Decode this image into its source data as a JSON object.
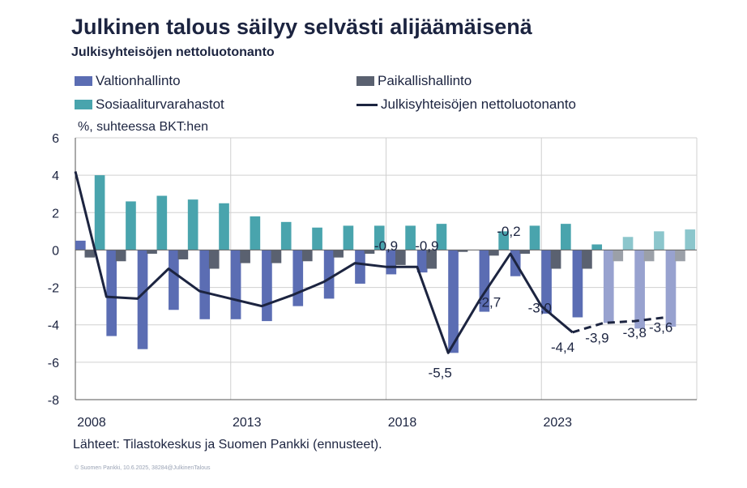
{
  "title": "Julkinen talous säilyy selvästi alijäämäisenä",
  "subtitle": "Julkisyhteisöjen nettoluotonanto",
  "unit_label": "%, suhteessa BKT:hen",
  "source": "Lähteet: Tilastokeskus ja Suomen Pankki (ennusteet).",
  "copyright": "© Suomen Pankki, 10.6.2025, 38284@JulkinenTalous",
  "legend": {
    "central": "Valtionhallinto",
    "local": "Paikallishallinto",
    "social": "Sosiaaliturvarahastot",
    "net": "Julkisyhteisöjen nettoluotonanto"
  },
  "colors": {
    "central": "#5b6db3",
    "central_forecast": "#98a2cf",
    "local": "#5a6170",
    "local_forecast": "#9ba0a8",
    "social": "#49a4ad",
    "social_forecast": "#8cc6cc",
    "net": "#1c2440",
    "grid": "#d0d0d0",
    "axis": "#555555"
  },
  "chart_data": {
    "type": "bar",
    "x": [
      2008,
      2009,
      2010,
      2011,
      2012,
      2013,
      2014,
      2015,
      2016,
      2017,
      2018,
      2019,
      2020,
      2021,
      2022,
      2023,
      2024,
      2025,
      2026,
      2027
    ],
    "x_tick_labels": [
      "2008",
      "2013",
      "2018",
      "2023"
    ],
    "ylim": [
      -8,
      6
    ],
    "yticks": [
      -8,
      -6,
      -4,
      -2,
      0,
      2,
      4,
      6
    ],
    "grid": true,
    "forecast_from": 2025,
    "series": [
      {
        "name": "Valtionhallinto",
        "type": "bar",
        "values": [
          0.5,
          -4.6,
          -5.3,
          -3.2,
          -3.7,
          -3.7,
          -3.8,
          -3.0,
          -2.6,
          -1.8,
          -1.3,
          -1.2,
          -5.5,
          -3.3,
          -1.4,
          -3.4,
          -3.6,
          -3.9,
          -4.2,
          -4.1
        ]
      },
      {
        "name": "Paikallishallinto",
        "type": "bar",
        "values": [
          -0.4,
          -0.6,
          -0.2,
          -0.5,
          -1.0,
          -0.7,
          -0.7,
          -0.6,
          -0.4,
          -0.2,
          -0.8,
          -1.0,
          -0.1,
          -0.3,
          -0.2,
          -1.0,
          -1.0,
          -0.6,
          -0.6,
          -0.6
        ]
      },
      {
        "name": "Sosiaaliturvarahastot",
        "type": "bar",
        "values": [
          4.0,
          2.6,
          2.9,
          2.7,
          2.5,
          1.8,
          1.5,
          1.2,
          1.3,
          1.3,
          1.3,
          1.4,
          0.0,
          1.0,
          1.3,
          1.4,
          0.3,
          0.7,
          1.0,
          1.1
        ]
      },
      {
        "name": "Julkisyhteisöjen nettoluotonanto",
        "type": "line",
        "values": [
          4.2,
          -2.5,
          -2.6,
          -1.0,
          -2.2,
          -2.6,
          -3.0,
          -2.4,
          -1.7,
          -0.7,
          -0.9,
          -0.9,
          -5.5,
          -2.7,
          -0.2,
          -3.0,
          -4.4,
          -3.9,
          -3.8,
          -3.6
        ]
      }
    ],
    "data_labels": [
      {
        "text": "-0,9",
        "year": 2018,
        "value": -0.9
      },
      {
        "text": "-0,9",
        "year": 2019,
        "value": -0.9
      },
      {
        "text": "-5,5",
        "year": 2020,
        "value": -5.5
      },
      {
        "text": "-2,7",
        "year": 2021,
        "value": -2.7
      },
      {
        "text": "-0,2",
        "year": 2022,
        "value": -0.2
      },
      {
        "text": "-3,0",
        "year": 2023,
        "value": -3.0
      },
      {
        "text": "-4,4",
        "year": 2024,
        "value": -4.4
      },
      {
        "text": "-3,9",
        "year": 2025,
        "value": -3.9
      },
      {
        "text": "-3,8",
        "year": 2026,
        "value": -3.8
      },
      {
        "text": "-3,6",
        "year": 2027,
        "value": -3.6
      }
    ]
  }
}
